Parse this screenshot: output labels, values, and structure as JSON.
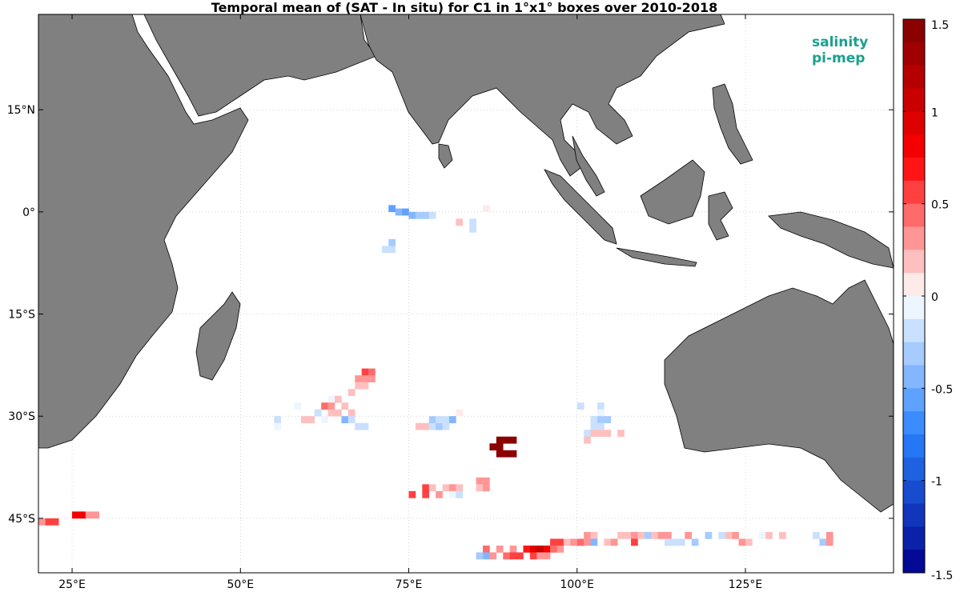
{
  "title": "Temporal mean of (SAT - In situ) for C1 in 1°x1° boxes over 2010-2018",
  "map": {
    "lon_range": [
      20,
      147
    ],
    "lat_range": [
      -53,
      29
    ],
    "lat_ticks": [
      {
        "value": 15,
        "label": "15°N"
      },
      {
        "value": 0,
        "label": "0°"
      },
      {
        "value": -15,
        "label": "15°S"
      },
      {
        "value": -30,
        "label": "30°S"
      },
      {
        "value": -45,
        "label": "45°S"
      }
    ],
    "lon_ticks": [
      {
        "value": 25,
        "label": "25°E"
      },
      {
        "value": 50,
        "label": "50°E"
      },
      {
        "value": 75,
        "label": "75°E"
      },
      {
        "value": 100,
        "label": "100°E"
      },
      {
        "value": 125,
        "label": "125°E"
      }
    ],
    "land_color": "#808080",
    "grid": true
  },
  "colorbar": {
    "range": [
      -1.5,
      1.5
    ],
    "ticks": [
      "1.5",
      "1",
      "0.5",
      "0",
      "-0.5",
      "-1",
      "-1.5"
    ],
    "tick_values": [
      1.5,
      1,
      0.5,
      0,
      -0.5,
      -1,
      -1.5
    ],
    "levels": 24
  },
  "logo": {
    "line1": "salinity",
    "line2": "pi-mep"
  },
  "chart_data": {
    "type": "heatmap",
    "title": "Temporal mean of (SAT - In situ) for C1 in 1°x1° boxes over 2010-2018",
    "cells": [
      {
        "lon": 72,
        "lat": 1,
        "v": -0.6
      },
      {
        "lon": 73,
        "lat": 0.5,
        "v": -0.5
      },
      {
        "lon": 74,
        "lat": 0.5,
        "v": -0.6
      },
      {
        "lon": 75,
        "lat": 0,
        "v": -0.4
      },
      {
        "lon": 76,
        "lat": 0,
        "v": -0.35
      },
      {
        "lon": 77,
        "lat": 0,
        "v": -0.3
      },
      {
        "lon": 78,
        "lat": 0,
        "v": -0.15
      },
      {
        "lon": 72,
        "lat": -4,
        "v": -0.3
      },
      {
        "lon": 72,
        "lat": -5,
        "v": -0.25
      },
      {
        "lon": 71,
        "lat": -5,
        "v": -0.2
      },
      {
        "lon": 82,
        "lat": -1,
        "v": 0.2
      },
      {
        "lon": 84,
        "lat": -1,
        "v": -0.2
      },
      {
        "lon": 84,
        "lat": -2,
        "v": -0.2
      },
      {
        "lon": 86,
        "lat": 1,
        "v": 0.1
      },
      {
        "lon": 68,
        "lat": -23,
        "v": 0.5
      },
      {
        "lon": 69,
        "lat": -23,
        "v": 0.45
      },
      {
        "lon": 68,
        "lat": -24,
        "v": 0.3
      },
      {
        "lon": 69,
        "lat": -24,
        "v": 0.35
      },
      {
        "lon": 67,
        "lat": -24,
        "v": 0.25
      },
      {
        "lon": 68,
        "lat": -25,
        "v": 0.2
      },
      {
        "lon": 67,
        "lat": -25,
        "v": 0.2
      },
      {
        "lon": 66,
        "lat": -26,
        "v": 0.15
      },
      {
        "lon": 63,
        "lat": -27,
        "v": -0.1
      },
      {
        "lon": 64,
        "lat": -27,
        "v": 0.2
      },
      {
        "lon": 62,
        "lat": -28,
        "v": 0.4
      },
      {
        "lon": 63,
        "lat": -28,
        "v": 0.3
      },
      {
        "lon": 65,
        "lat": -28,
        "v": 0.2
      },
      {
        "lon": 61,
        "lat": -29,
        "v": -0.15
      },
      {
        "lon": 63,
        "lat": -29,
        "v": 0.2
      },
      {
        "lon": 64,
        "lat": -29,
        "v": 0.2
      },
      {
        "lon": 66,
        "lat": -29,
        "v": 0.15
      },
      {
        "lon": 59,
        "lat": -30,
        "v": 0.15
      },
      {
        "lon": 60,
        "lat": -30,
        "v": 0.2
      },
      {
        "lon": 62,
        "lat": -30,
        "v": -0.1
      },
      {
        "lon": 65,
        "lat": -30,
        "v": -0.4
      },
      {
        "lon": 66,
        "lat": -30,
        "v": -0.15
      },
      {
        "lon": 55,
        "lat": -30,
        "v": -0.15
      },
      {
        "lon": 55,
        "lat": -31,
        "v": -0.1
      },
      {
        "lon": 67,
        "lat": -31,
        "v": -0.2
      },
      {
        "lon": 68,
        "lat": -31,
        "v": -0.15
      },
      {
        "lon": 58,
        "lat": -28,
        "v": -0.1
      },
      {
        "lon": 76,
        "lat": -31,
        "v": 0.15
      },
      {
        "lon": 77,
        "lat": -31,
        "v": 0.2
      },
      {
        "lon": 78,
        "lat": -31,
        "v": -0.2
      },
      {
        "lon": 79,
        "lat": -31,
        "v": -0.3
      },
      {
        "lon": 80,
        "lat": -31,
        "v": -0.25
      },
      {
        "lon": 78,
        "lat": -30,
        "v": -0.35
      },
      {
        "lon": 80,
        "lat": -30,
        "v": -0.2
      },
      {
        "lon": 81,
        "lat": -30,
        "v": -0.4
      },
      {
        "lon": 82,
        "lat": -29,
        "v": 0.1
      },
      {
        "lon": 79,
        "lat": -30,
        "v": -0.15
      },
      {
        "lon": 87,
        "lat": -34,
        "v": 1.5
      },
      {
        "lon": 88,
        "lat": -33,
        "v": 1.5
      },
      {
        "lon": 89,
        "lat": -33,
        "v": 1.5
      },
      {
        "lon": 88,
        "lat": -34,
        "v": 1.5
      },
      {
        "lon": 88,
        "lat": -35,
        "v": 1.5
      },
      {
        "lon": 89,
        "lat": -35,
        "v": 1.5
      },
      {
        "lon": 90,
        "lat": -35,
        "v": 1.5
      },
      {
        "lon": 90,
        "lat": -33,
        "v": 1.5
      },
      {
        "lon": 100,
        "lat": -28,
        "v": -0.2
      },
      {
        "lon": 103,
        "lat": -28,
        "v": -0.15
      },
      {
        "lon": 103,
        "lat": -29,
        "v": -0.1
      },
      {
        "lon": 102,
        "lat": -30,
        "v": -0.2
      },
      {
        "lon": 103,
        "lat": -30,
        "v": -0.3
      },
      {
        "lon": 104,
        "lat": -30,
        "v": -0.3
      },
      {
        "lon": 102,
        "lat": -31,
        "v": -0.2
      },
      {
        "lon": 103,
        "lat": -31,
        "v": -0.15
      },
      {
        "lon": 101,
        "lat": -32,
        "v": -0.15
      },
      {
        "lon": 102,
        "lat": -32,
        "v": 0.15
      },
      {
        "lon": 103,
        "lat": -32,
        "v": 0.2
      },
      {
        "lon": 104,
        "lat": -32,
        "v": 0.2
      },
      {
        "lon": 106,
        "lat": -32,
        "v": 0.2
      },
      {
        "lon": 101,
        "lat": -33,
        "v": 0.15
      },
      {
        "lon": 77,
        "lat": -40,
        "v": 0.6
      },
      {
        "lon": 77,
        "lat": -41,
        "v": 0.5
      },
      {
        "lon": 75,
        "lat": -41,
        "v": 0.5
      },
      {
        "lon": 78,
        "lat": -40,
        "v": 0.2
      },
      {
        "lon": 79,
        "lat": -41,
        "v": 0.3
      },
      {
        "lon": 80,
        "lat": -40,
        "v": 0.2
      },
      {
        "lon": 81,
        "lat": -40,
        "v": 0.25
      },
      {
        "lon": 81,
        "lat": -41,
        "v": -0.1
      },
      {
        "lon": 82,
        "lat": -40,
        "v": 0.2
      },
      {
        "lon": 82,
        "lat": -41,
        "v": -0.15
      },
      {
        "lon": 85,
        "lat": -39,
        "v": 0.35
      },
      {
        "lon": 86,
        "lat": -39,
        "v": 0.3
      },
      {
        "lon": 85,
        "lat": -40,
        "v": 0.2
      },
      {
        "lon": 86,
        "lat": -40,
        "v": 0.25
      },
      {
        "lon": 21,
        "lat": -45,
        "v": 0.6
      },
      {
        "lon": 22,
        "lat": -45,
        "v": 0.5
      },
      {
        "lon": 20,
        "lat": -45,
        "v": 0.3
      },
      {
        "lon": 25,
        "lat": -44,
        "v": 0.8
      },
      {
        "lon": 26,
        "lat": -44,
        "v": 0.75
      },
      {
        "lon": 27,
        "lat": -44,
        "v": 0.3
      },
      {
        "lon": 28,
        "lat": -44,
        "v": 0.25
      },
      {
        "lon": 86,
        "lat": -49,
        "v": 0.4
      },
      {
        "lon": 86,
        "lat": -50,
        "v": -0.4
      },
      {
        "lon": 85,
        "lat": -50,
        "v": -0.3
      },
      {
        "lon": 87,
        "lat": -50,
        "v": 0.3
      },
      {
        "lon": 88,
        "lat": -49,
        "v": 0.25
      },
      {
        "lon": 89,
        "lat": -50,
        "v": 0.4
      },
      {
        "lon": 90,
        "lat": -49,
        "v": 0.3
      },
      {
        "lon": 90,
        "lat": -50,
        "v": 0.5
      },
      {
        "lon": 91,
        "lat": -50,
        "v": 0.6
      },
      {
        "lon": 92,
        "lat": -49,
        "v": 0.7
      },
      {
        "lon": 93,
        "lat": -49,
        "v": 0.9
      },
      {
        "lon": 94,
        "lat": -49,
        "v": 1.0
      },
      {
        "lon": 95,
        "lat": -49,
        "v": 0.8
      },
      {
        "lon": 93,
        "lat": -50,
        "v": 0.5
      },
      {
        "lon": 94,
        "lat": -50,
        "v": 0.3
      },
      {
        "lon": 95,
        "lat": -50,
        "v": 0.35
      },
      {
        "lon": 96,
        "lat": -48,
        "v": 0.5
      },
      {
        "lon": 96,
        "lat": -49,
        "v": 0.4
      },
      {
        "lon": 97,
        "lat": -48,
        "v": 0.6
      },
      {
        "lon": 97,
        "lat": -49,
        "v": 0.35
      },
      {
        "lon": 98,
        "lat": -48,
        "v": 0.2
      },
      {
        "lon": 99,
        "lat": -48,
        "v": 0.35
      },
      {
        "lon": 100,
        "lat": -48,
        "v": 0.4
      },
      {
        "lon": 101,
        "lat": -47,
        "v": 0.25
      },
      {
        "lon": 101,
        "lat": -48,
        "v": 0.3
      },
      {
        "lon": 102,
        "lat": -47,
        "v": 0.2
      },
      {
        "lon": 102,
        "lat": -48,
        "v": -0.4
      },
      {
        "lon": 104,
        "lat": -48,
        "v": 0.2
      },
      {
        "lon": 105,
        "lat": -48,
        "v": 0.3
      },
      {
        "lon": 106,
        "lat": -47,
        "v": 0.2
      },
      {
        "lon": 107,
        "lat": -47,
        "v": 0.2
      },
      {
        "lon": 108,
        "lat": -47,
        "v": 0.3
      },
      {
        "lon": 108,
        "lat": -48,
        "v": 0.6
      },
      {
        "lon": 109,
        "lat": -47,
        "v": 0.2
      },
      {
        "lon": 110,
        "lat": -47,
        "v": -0.3
      },
      {
        "lon": 111,
        "lat": -47,
        "v": 0.2
      },
      {
        "lon": 112,
        "lat": -47,
        "v": 0.25
      },
      {
        "lon": 113,
        "lat": -47,
        "v": 0.3
      },
      {
        "lon": 113,
        "lat": -48,
        "v": -0.2
      },
      {
        "lon": 114,
        "lat": -48,
        "v": -0.25
      },
      {
        "lon": 115,
        "lat": -48,
        "v": -0.2
      },
      {
        "lon": 116,
        "lat": -47,
        "v": 0.3
      },
      {
        "lon": 117,
        "lat": -48,
        "v": -0.3
      },
      {
        "lon": 119,
        "lat": -47,
        "v": -0.35
      },
      {
        "lon": 121,
        "lat": -47,
        "v": -0.25
      },
      {
        "lon": 122,
        "lat": -47,
        "v": 0.2
      },
      {
        "lon": 123,
        "lat": -47,
        "v": 0.25
      },
      {
        "lon": 124,
        "lat": -48,
        "v": 0.3
      },
      {
        "lon": 125,
        "lat": -48,
        "v": 0.2
      },
      {
        "lon": 127,
        "lat": -47,
        "v": -0.1
      },
      {
        "lon": 130,
        "lat": -47,
        "v": 0.15
      },
      {
        "lon": 135,
        "lat": -47,
        "v": -0.15
      },
      {
        "lon": 136,
        "lat": -48,
        "v": -0.3
      },
      {
        "lon": 137,
        "lat": -47,
        "v": 0.3
      },
      {
        "lon": 137,
        "lat": -48,
        "v": 0.25
      },
      {
        "lon": 128,
        "lat": -47,
        "v": 0.15
      }
    ]
  }
}
